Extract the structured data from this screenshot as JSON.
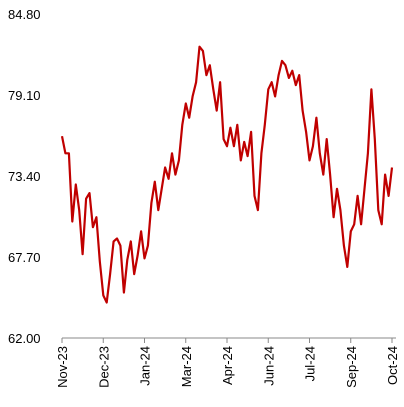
{
  "chart_data": {
    "type": "line",
    "categories": [
      "Nov-23",
      null,
      null,
      null,
      null,
      null,
      null,
      null,
      null,
      null,
      null,
      null,
      "Dec-23",
      null,
      null,
      null,
      null,
      null,
      null,
      null,
      null,
      null,
      null,
      null,
      "Jan-24",
      null,
      null,
      null,
      null,
      null,
      null,
      null,
      null,
      null,
      null,
      null,
      "Mar-24",
      null,
      null,
      null,
      null,
      null,
      null,
      null,
      null,
      null,
      null,
      null,
      "Apr-24",
      null,
      null,
      null,
      null,
      null,
      null,
      null,
      null,
      null,
      null,
      null,
      "Jun-24",
      null,
      null,
      null,
      null,
      null,
      null,
      null,
      null,
      null,
      null,
      null,
      "Jul-24",
      null,
      null,
      null,
      null,
      null,
      null,
      null,
      null,
      null,
      null,
      null,
      "Sep-24",
      null,
      null,
      null,
      null,
      null,
      null,
      null,
      null,
      null,
      null,
      null,
      "Oct-24"
    ],
    "series": [
      {
        "color": "#c00000",
        "values": [
          76.2,
          75.0,
          75.0,
          70.2,
          72.8,
          71.0,
          67.9,
          71.8,
          72.2,
          69.8,
          70.5,
          67.4,
          65.0,
          64.5,
          66.5,
          68.8,
          69.0,
          68.5,
          65.2,
          67.5,
          68.8,
          66.5,
          67.8,
          69.5,
          67.6,
          68.5,
          71.5,
          73.0,
          71.0,
          72.5,
          74.0,
          73.2,
          75.0,
          73.5,
          74.5,
          77.0,
          78.5,
          77.5,
          79.0,
          80.0,
          82.5,
          82.2,
          80.5,
          81.2,
          79.5,
          78.0,
          80.0,
          76.0,
          75.5,
          76.8,
          75.5,
          77.0,
          74.5,
          75.8,
          74.8,
          76.5,
          72.0,
          71.0,
          75.0,
          77.0,
          79.5,
          80.0,
          79.0,
          80.5,
          81.5,
          81.2,
          80.3,
          80.8,
          79.8,
          80.5,
          78.0,
          76.5,
          74.5,
          75.5,
          77.5,
          75.0,
          73.5,
          76.0,
          73.5,
          70.5,
          72.5,
          71.0,
          68.5,
          67.0,
          69.5,
          70.0,
          72.0,
          70.0,
          72.5,
          75.0,
          79.5,
          76.0,
          71.0,
          70.0,
          73.5,
          72.0,
          74.0
        ]
      }
    ],
    "ylim": [
      62.0,
      84.8
    ],
    "yticks": [
      {
        "value": 62.0,
        "label": "62.00"
      },
      {
        "value": 67.7,
        "label": "67.70"
      },
      {
        "value": 73.4,
        "label": "73.40"
      },
      {
        "value": 79.1,
        "label": "79.10"
      },
      {
        "value": 84.8,
        "label": "84.80"
      }
    ]
  }
}
